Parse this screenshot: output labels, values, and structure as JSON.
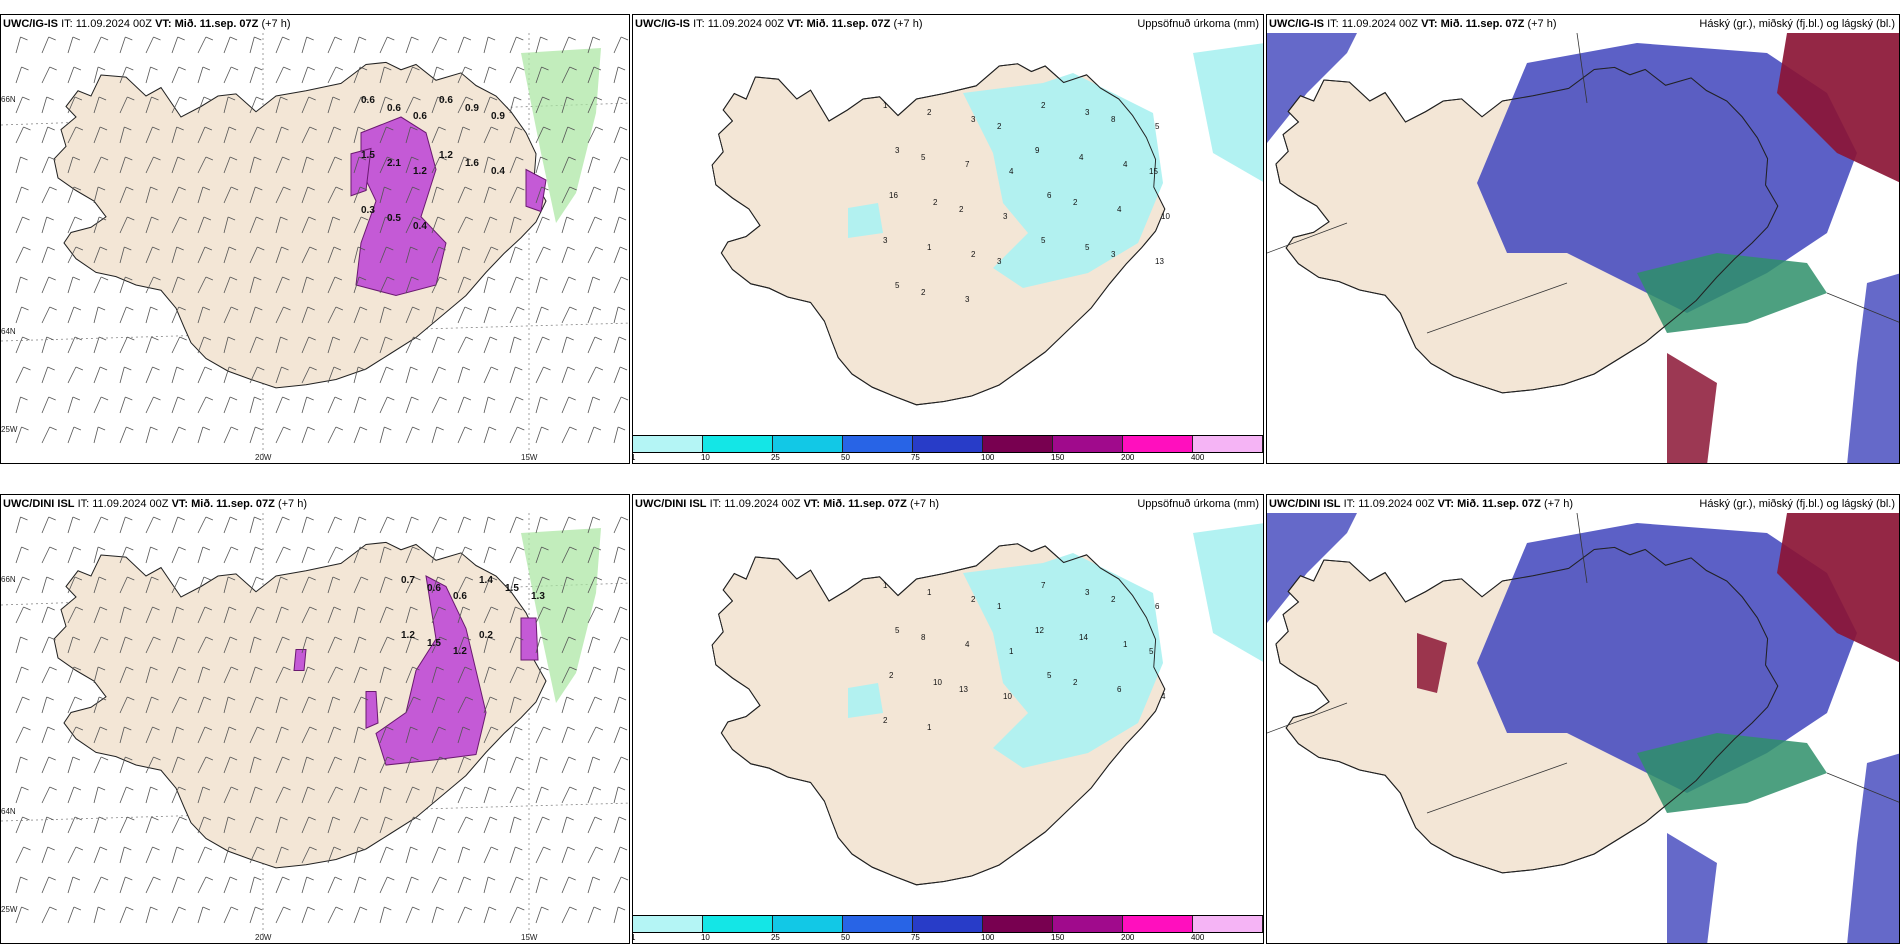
{
  "rows": [
    {
      "wind": {
        "model": "UWC/IG-IS",
        "it_label": "IT:",
        "it": "11.09.2024 00Z",
        "vt_label": "VT:",
        "vt": "Mið. 11.sep. 07Z",
        "lead": "(+7 h)",
        "values": [
          "0.6",
          "0.6",
          "0.6",
          "0.6",
          "0.9",
          "0.9",
          "1.5",
          "2.1",
          "1.2",
          "1.2",
          "1.6",
          "0.4",
          "0.3",
          "0.5",
          "0.4"
        ]
      },
      "precip": {
        "model": "UWC/IG-IS",
        "it_label": "IT:",
        "it": "11.09.2024 00Z",
        "vt_label": "VT:",
        "vt": "Mið. 11.sep. 07Z",
        "lead": "(+7 h)",
        "right_title": "Uppsöfnuð úrkoma (mm)",
        "values": [
          "1",
          "2",
          "3",
          "2",
          "2",
          "3",
          "8",
          "5",
          "3",
          "5",
          "7",
          "4",
          "9",
          "4",
          "4",
          "15",
          "16",
          "2",
          "2",
          "3",
          "6",
          "2",
          "4",
          "10",
          "3",
          "1",
          "2",
          "3",
          "5",
          "5",
          "3",
          "13",
          "5",
          "2",
          "3"
        ]
      },
      "cloud": {
        "model": "UWC/IG-IS",
        "it_label": "IT:",
        "it": "11.09.2024 00Z",
        "vt_label": "VT:",
        "vt": "Mið. 11.sep. 07Z",
        "lead": "(+7 h)",
        "right_title": "Háský (gr.), miðský (fj.bl.) og lágský (bl.)"
      }
    },
    {
      "wind": {
        "model": "UWC/DINI ISL",
        "it_label": "IT:",
        "it": "11.09.2024 00Z",
        "vt_label": "VT:",
        "vt": "Mið. 11.sep. 07Z",
        "lead": "(+7 h)",
        "values": [
          "0.7",
          "0.6",
          "0.6",
          "1.4",
          "1.5",
          "1.3",
          "1.2",
          "1.5",
          "1.2",
          "0.2"
        ]
      },
      "precip": {
        "model": "UWC/DINI ISL",
        "it_label": "IT:",
        "it": "11.09.2024 00Z",
        "vt_label": "VT:",
        "vt": "Mið. 11.sep. 07Z",
        "lead": "(+7 h)",
        "right_title": "Uppsöfnuð úrkoma (mm)",
        "values": [
          "1",
          "1",
          "2",
          "1",
          "7",
          "3",
          "2",
          "6",
          "5",
          "8",
          "4",
          "1",
          "12",
          "14",
          "1",
          "5",
          "2",
          "10",
          "13",
          "10",
          "5",
          "2",
          "6",
          "4",
          "2",
          "1"
        ]
      },
      "cloud": {
        "model": "UWC/DINI ISL",
        "it_label": "IT:",
        "it": "11.09.2024 00Z",
        "vt_label": "VT:",
        "vt": "Mið. 11.sep. 07Z",
        "lead": "(+7 h)",
        "right_title": "Háský (gr.), miðský (fj.bl.) og lágský (bl.)"
      }
    }
  ],
  "axes": {
    "lon_labels": [
      "20W",
      "15W"
    ],
    "lat_labels": [
      "66N",
      "64N",
      "25W"
    ]
  },
  "colorbar": {
    "ticks": [
      "1",
      "10",
      "25",
      "50",
      "75",
      "100",
      "150",
      "200",
      "400"
    ],
    "colors": [
      "#b4f5f5",
      "#14e6e6",
      "#12c8e6",
      "#2864e6",
      "#283cc8",
      "#780050",
      "#a00a8c",
      "#ff0fbe",
      "#f5b4f5"
    ]
  },
  "colors": {
    "land": "#f3e6d6",
    "precip_fill": "#aef1f1",
    "wind_purple": "#c45ad6",
    "cloud_blue": "#4a4fc0",
    "cloud_red": "#8b1535",
    "cloud_green": "#2e8f6a"
  }
}
